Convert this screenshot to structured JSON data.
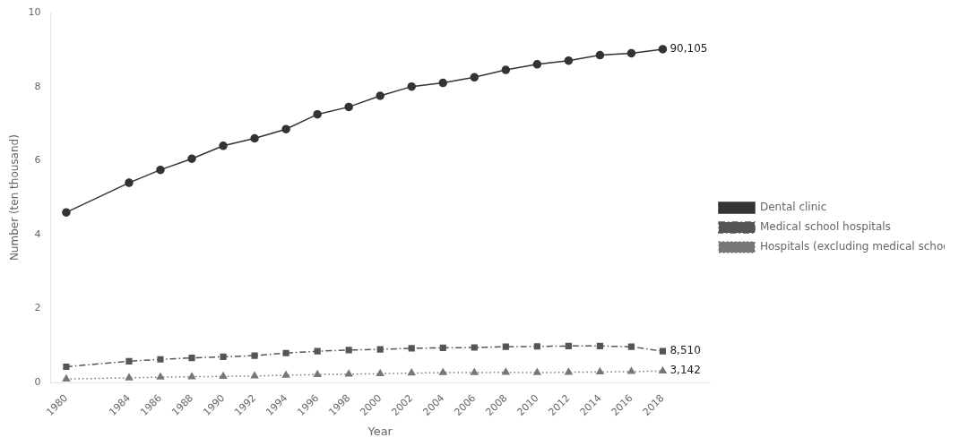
{
  "chart_data": {
    "type": "line",
    "x": [
      1980,
      1984,
      1986,
      1988,
      1990,
      1992,
      1994,
      1996,
      1998,
      2000,
      2002,
      2004,
      2006,
      2008,
      2010,
      2012,
      2014,
      2016,
      2018
    ],
    "series": [
      {
        "name": "Dental clinic",
        "color": "#333333",
        "marker": "circle",
        "line_style": "solid",
        "values": [
          4.6,
          5.4,
          5.75,
          6.05,
          6.4,
          6.6,
          6.85,
          7.25,
          7.45,
          7.75,
          8.0,
          8.1,
          8.25,
          8.45,
          8.6,
          8.7,
          8.85,
          8.9,
          9.01
        ]
      },
      {
        "name": "Medical school hospitals",
        "color": "#555555",
        "marker": "square",
        "line_style": "dashdot",
        "values": [
          0.43,
          0.58,
          0.63,
          0.67,
          0.7,
          0.73,
          0.8,
          0.85,
          0.88,
          0.9,
          0.93,
          0.94,
          0.95,
          0.97,
          0.98,
          0.99,
          0.99,
          0.97,
          0.851
        ]
      },
      {
        "name": "Hospitals (excluding medical school hospitals)",
        "color": "#777777",
        "marker": "triangle",
        "line_style": "dotted",
        "values": [
          0.1,
          0.13,
          0.15,
          0.16,
          0.17,
          0.18,
          0.2,
          0.22,
          0.23,
          0.24,
          0.26,
          0.27,
          0.27,
          0.28,
          0.27,
          0.28,
          0.29,
          0.3,
          0.3142
        ]
      }
    ],
    "annotations": [
      {
        "text": "90,105",
        "x": 2018,
        "y": 9.01
      },
      {
        "text": "8,510",
        "x": 2018,
        "y": 0.851
      },
      {
        "text": "3,142",
        "x": 2018,
        "y": 0.3142
      }
    ],
    "x_label": "Year",
    "y_label": "Number (ten thousand)",
    "xlim": [
      1979,
      2021
    ],
    "xticks": [
      1980,
      1984,
      1986,
      1988,
      1990,
      1992,
      1994,
      1996,
      1998,
      2000,
      2002,
      2004,
      2006,
      2008,
      2010,
      2012,
      2014,
      2016,
      2018
    ],
    "ylim": [
      0,
      10
    ],
    "yticks": [
      0,
      2,
      4,
      6,
      8,
      10
    ],
    "grid": false,
    "legend": "right"
  }
}
